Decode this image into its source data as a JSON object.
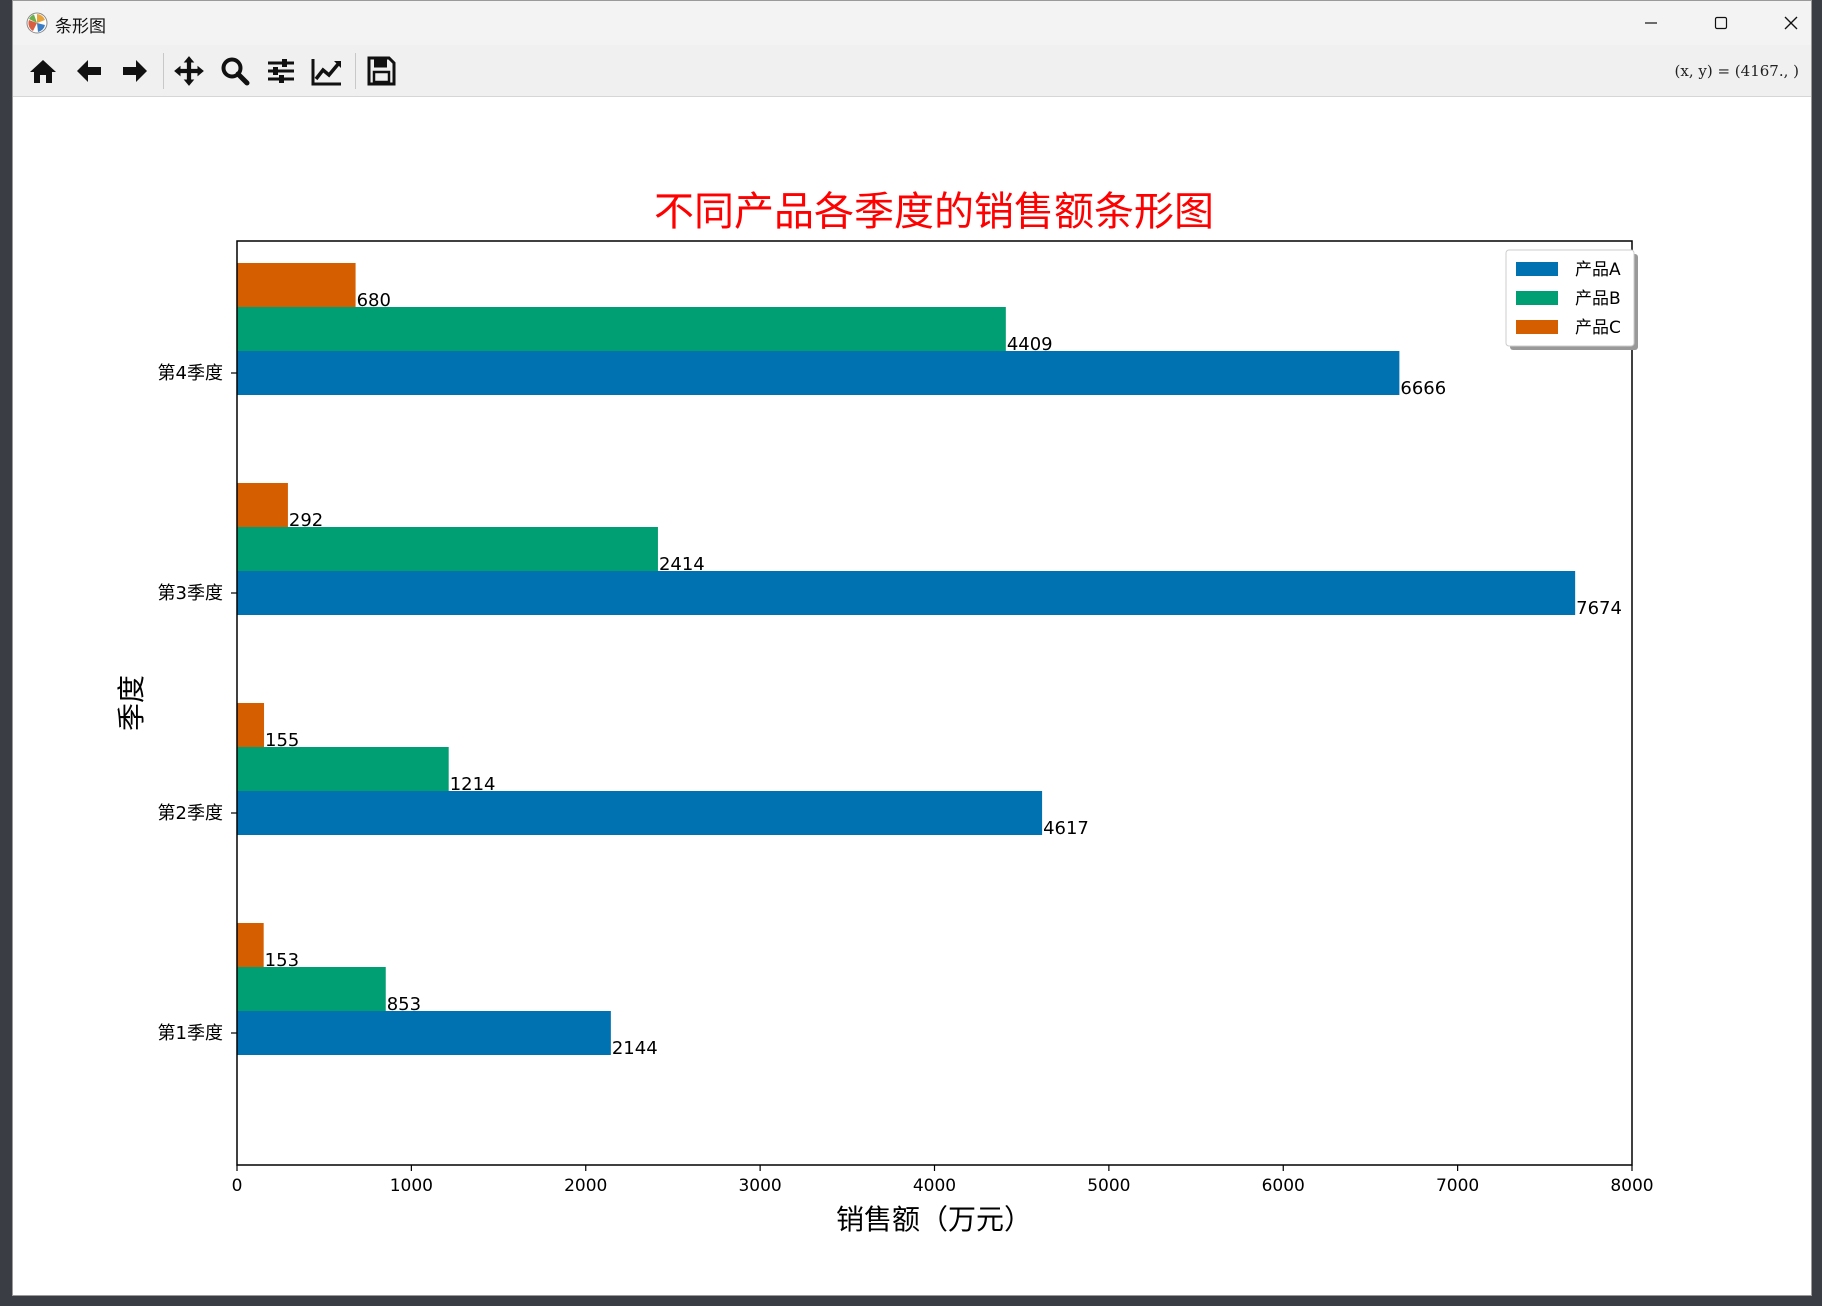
{
  "window": {
    "title": "条形图",
    "icon": "matplotlib-logo-icon",
    "controls": [
      "minimize-icon",
      "maximize-icon",
      "close-icon"
    ]
  },
  "toolbar": {
    "buttons": [
      "home-icon",
      "back-arrow-icon",
      "forward-arrow-icon",
      "pan-move-icon",
      "zoom-magnifier-icon",
      "configure-subplots-icon",
      "edit-axis-icon",
      "save-floppy-icon"
    ],
    "coordinate_readout": "(x, y) = (4167., )"
  },
  "colors": {
    "series_a": "#0072b2",
    "series_b": "#009e73",
    "series_c": "#d55e00",
    "title": "#ff0000"
  },
  "chart_data": {
    "type": "bar",
    "orientation": "horizontal",
    "title": "不同产品各季度的销售额条形图",
    "xlabel": "销售额（万元）",
    "ylabel": "季度",
    "categories": [
      "第1季度",
      "第2季度",
      "第3季度",
      "第4季度"
    ],
    "series": [
      {
        "name": "产品A",
        "values": [
          2144,
          4617,
          7674,
          6666
        ]
      },
      {
        "name": "产品B",
        "values": [
          853,
          1214,
          2414,
          4409
        ]
      },
      {
        "name": "产品C",
        "values": [
          153,
          155,
          292,
          680
        ]
      }
    ],
    "xlim": [
      0,
      8000
    ],
    "xticks": [
      0,
      1000,
      2000,
      3000,
      4000,
      5000,
      6000,
      7000,
      8000
    ],
    "grid": false,
    "legend": "top-right",
    "data_labels": true
  }
}
